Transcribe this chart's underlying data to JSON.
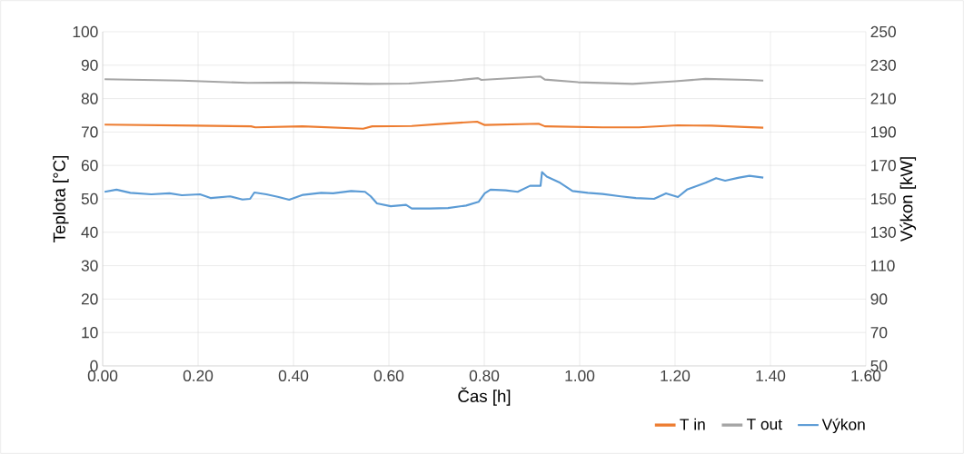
{
  "chart_data": {
    "type": "line",
    "xlabel": "Čas [h]",
    "ylabel": "Teplota [°C]",
    "y2label": "Výkon [kW]",
    "xlim": [
      0,
      1.6
    ],
    "ylim": [
      0,
      100
    ],
    "y2lim": [
      50,
      250
    ],
    "xticks": [
      {
        "value": 0,
        "label": "0.00"
      },
      {
        "value": 0.2,
        "label": "0.20"
      },
      {
        "value": 0.4,
        "label": "0.40"
      },
      {
        "value": 0.6,
        "label": "0.60"
      },
      {
        "value": 0.8,
        "label": "0.80"
      },
      {
        "value": 1.0,
        "label": "1.00"
      },
      {
        "value": 1.2,
        "label": "1.20"
      },
      {
        "value": 1.4,
        "label": "1.40"
      },
      {
        "value": 1.6,
        "label": "1.60"
      }
    ],
    "yticks": [
      0,
      10,
      20,
      30,
      40,
      50,
      60,
      70,
      80,
      90,
      100
    ],
    "y2ticks": [
      50,
      70,
      90,
      110,
      130,
      150,
      170,
      190,
      210,
      230,
      250
    ],
    "grid": true,
    "legend": "bottom right",
    "marker": "none",
    "line_style": "solid",
    "series": [
      {
        "name": "T in",
        "color": "#ed7d31",
        "x": [
          0.004,
          0.197,
          0.311,
          0.32,
          0.419,
          0.546,
          0.565,
          0.648,
          0.705,
          0.785,
          0.801,
          0.914,
          0.927,
          1.048,
          1.124,
          1.206,
          1.276,
          1.346,
          1.385
        ],
        "values": [
          72.2,
          71.9,
          71.7,
          71.4,
          71.7,
          71.0,
          71.7,
          71.8,
          72.4,
          73.1,
          72.1,
          72.5,
          71.7,
          71.4,
          71.4,
          72.0,
          71.9,
          71.5,
          71.3
        ]
      },
      {
        "name": "T out",
        "color": "#a5a5a5",
        "x": [
          0.004,
          0.166,
          0.305,
          0.394,
          0.559,
          0.642,
          0.737,
          0.787,
          0.794,
          0.918,
          0.927,
          0.997,
          1.111,
          1.2,
          1.264,
          1.352,
          1.385
        ],
        "values": [
          85.8,
          85.4,
          84.7,
          84.8,
          84.4,
          84.5,
          85.4,
          86.1,
          85.6,
          86.6,
          85.7,
          84.9,
          84.4,
          85.2,
          85.9,
          85.6,
          85.4
        ]
      },
      {
        "name": "Výkon",
        "color": "#5b9bd5",
        "axis": "y2",
        "x": [
          0.004,
          0.029,
          0.058,
          0.102,
          0.14,
          0.166,
          0.204,
          0.226,
          0.267,
          0.293,
          0.309,
          0.318,
          0.343,
          0.369,
          0.391,
          0.42,
          0.458,
          0.483,
          0.521,
          0.55,
          0.562,
          0.575,
          0.604,
          0.636,
          0.648,
          0.686,
          0.724,
          0.762,
          0.788,
          0.801,
          0.813,
          0.845,
          0.87,
          0.896,
          0.918,
          0.921,
          0.931,
          0.959,
          0.985,
          1.017,
          1.048,
          1.086,
          1.118,
          1.156,
          1.181,
          1.206,
          1.225,
          1.264,
          1.286,
          1.305,
          1.334,
          1.356,
          1.385
        ],
        "values": [
          154.2,
          155.5,
          153.6,
          152.7,
          153.3,
          152.2,
          152.7,
          150.5,
          151.5,
          149.6,
          150,
          153.8,
          152.7,
          151.1,
          149.5,
          152.4,
          153.6,
          153.3,
          154.7,
          154.2,
          151.5,
          147.3,
          145.6,
          146.4,
          144.2,
          144.2,
          144.5,
          146,
          148.2,
          153.3,
          155.5,
          155.1,
          154.2,
          157.8,
          157.8,
          166,
          163.3,
          159.6,
          154.7,
          153.6,
          152.9,
          151.5,
          150.5,
          150,
          153.3,
          151.1,
          155.5,
          159.6,
          162.4,
          160.9,
          162.7,
          163.8,
          162.7
        ]
      }
    ]
  }
}
